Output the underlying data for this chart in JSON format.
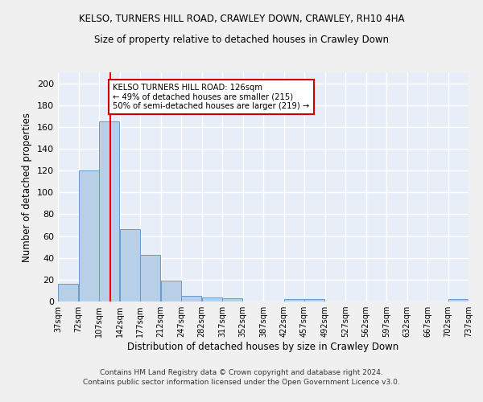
{
  "title": "KELSO, TURNERS HILL ROAD, CRAWLEY DOWN, CRAWLEY, RH10 4HA",
  "subtitle": "Size of property relative to detached houses in Crawley Down",
  "xlabel": "Distribution of detached houses by size in Crawley Down",
  "ylabel": "Number of detached properties",
  "bin_edges": [
    37,
    72,
    107,
    142,
    177,
    212,
    247,
    282,
    317,
    352,
    387,
    422,
    457,
    492,
    527,
    562,
    597,
    632,
    667,
    702,
    737
  ],
  "bar_heights": [
    16,
    120,
    165,
    66,
    43,
    19,
    5,
    4,
    3,
    0,
    0,
    2,
    2,
    0,
    0,
    0,
    0,
    0,
    0,
    2
  ],
  "bar_color": "#b8cfe8",
  "bar_edge_color": "#6699cc",
  "bg_color": "#e8eef8",
  "grid_color": "#ffffff",
  "fig_bg_color": "#f0f0f0",
  "red_line_x": 126,
  "annotation_text": "KELSO TURNERS HILL ROAD: 126sqm\n← 49% of detached houses are smaller (215)\n50% of semi-detached houses are larger (219) →",
  "annotation_box_color": "#ffffff",
  "annotation_box_edge": "#cc0000",
  "ylim": [
    0,
    210
  ],
  "yticks": [
    0,
    20,
    40,
    60,
    80,
    100,
    120,
    140,
    160,
    180,
    200
  ],
  "footer_line1": "Contains HM Land Registry data © Crown copyright and database right 2024.",
  "footer_line2": "Contains public sector information licensed under the Open Government Licence v3.0."
}
